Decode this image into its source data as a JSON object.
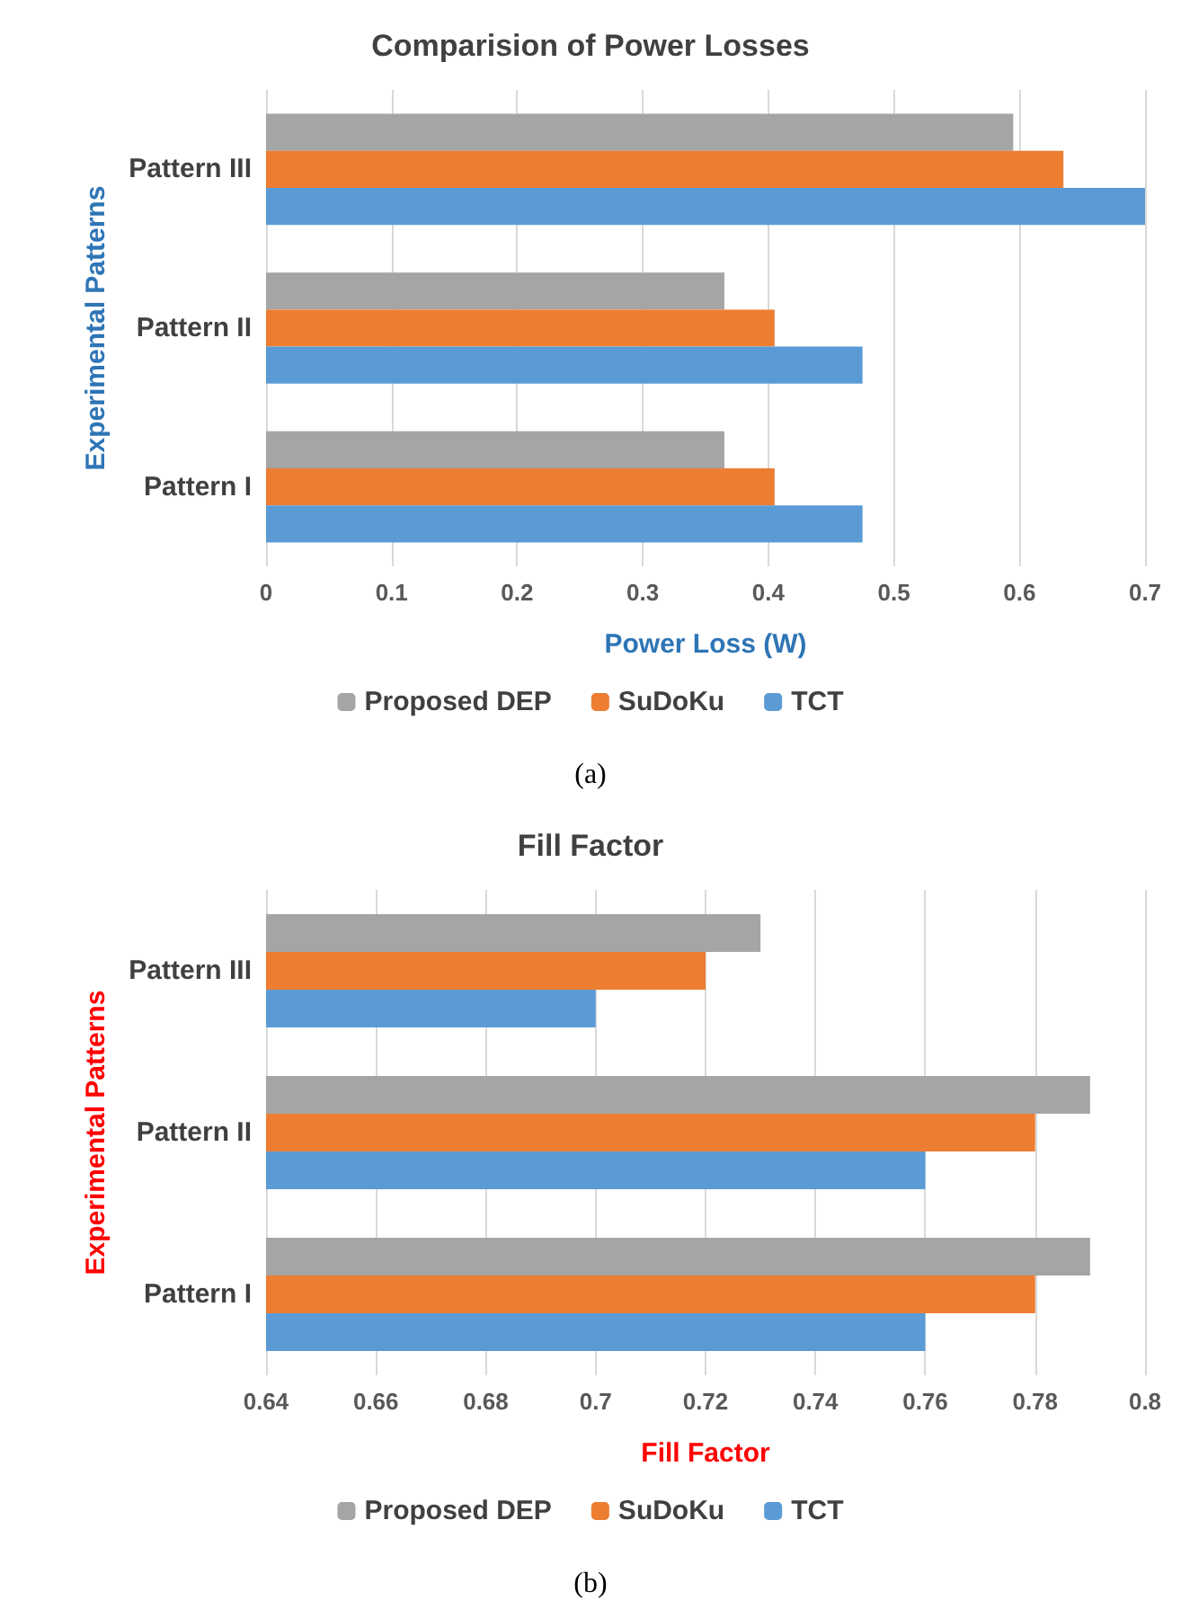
{
  "chart_data": [
    {
      "type": "bar",
      "orientation": "horizontal",
      "title": "Comparision of Power Losses",
      "xlabel": "Power Loss (W)",
      "ylabel": "Experimental Patterns",
      "categories": [
        "Pattern III",
        "Pattern II",
        "Pattern I"
      ],
      "series": [
        {
          "name": "Proposed DEP",
          "color": "#a5a5a5",
          "values": [
            0.595,
            0.365,
            0.365
          ]
        },
        {
          "name": "SuDoKu",
          "color": "#ed7d31",
          "values": [
            0.635,
            0.405,
            0.405
          ]
        },
        {
          "name": "TCT",
          "color": "#5b9bd5",
          "values": [
            0.7,
            0.475,
            0.475
          ]
        }
      ],
      "xlim": [
        0,
        0.7
      ],
      "xticks": [
        0,
        0.1,
        0.2,
        0.3,
        0.4,
        0.5,
        0.6,
        0.7
      ],
      "grid": "x",
      "legend": "bottom",
      "annotations": [
        "(a)"
      ]
    },
    {
      "type": "bar",
      "orientation": "horizontal",
      "title": "Fill Factor",
      "xlabel": "Fill Factor",
      "ylabel": "Experimental Patterns",
      "categories": [
        "Pattern III",
        "Pattern II",
        "Pattern I"
      ],
      "series": [
        {
          "name": "Proposed DEP",
          "color": "#a5a5a5",
          "values": [
            0.73,
            0.79,
            0.79
          ]
        },
        {
          "name": "SuDoKu",
          "color": "#ed7d31",
          "values": [
            0.72,
            0.78,
            0.78
          ]
        },
        {
          "name": "TCT",
          "color": "#5b9bd5",
          "values": [
            0.7,
            0.76,
            0.76
          ]
        }
      ],
      "xlim": [
        0.64,
        0.8
      ],
      "xticks": [
        0.64,
        0.66,
        0.68,
        0.7,
        0.72,
        0.74,
        0.76,
        0.78,
        0.8
      ],
      "grid": "x",
      "legend": "bottom",
      "annotations": [
        "(b)"
      ]
    }
  ]
}
